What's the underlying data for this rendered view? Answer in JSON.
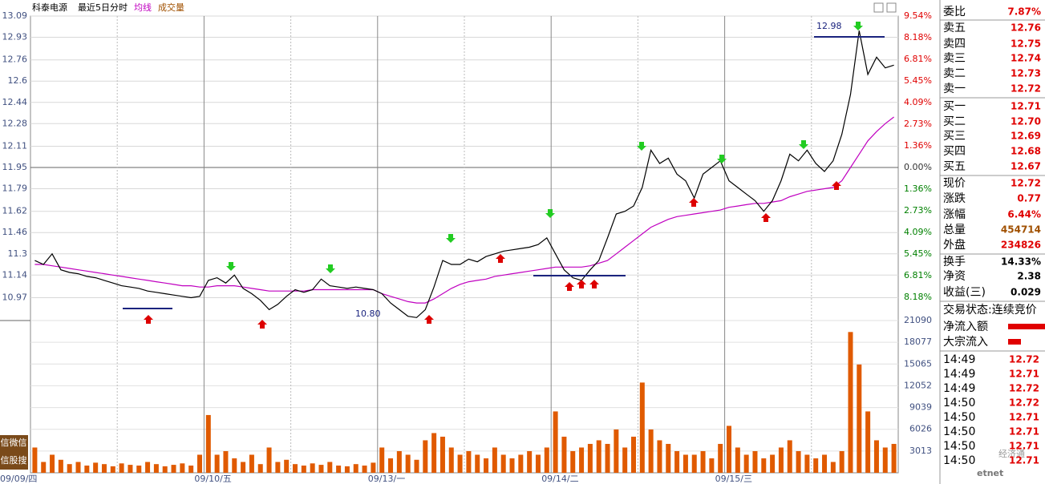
{
  "chart_data": {
    "type": "line",
    "title": "科泰电源",
    "subtitle": "最近5日分时",
    "categories": [
      "09/09/四",
      null,
      null,
      null,
      null,
      null,
      null,
      null,
      null,
      null,
      null,
      null,
      null,
      null,
      null,
      null,
      null,
      null,
      null,
      null,
      "09/10/五",
      null,
      null,
      null,
      null,
      null,
      null,
      null,
      null,
      null,
      null,
      null,
      null,
      null,
      null,
      null,
      null,
      null,
      null,
      null,
      "09/13/一",
      null,
      null,
      null,
      null,
      null,
      null,
      null,
      null,
      null,
      null,
      null,
      null,
      null,
      null,
      null,
      null,
      null,
      null,
      null,
      "09/14/二",
      null,
      null,
      null,
      null,
      null,
      null,
      null,
      null,
      null,
      null,
      null,
      null,
      null,
      null,
      null,
      null,
      null,
      null,
      null,
      "09/15/三",
      null,
      null,
      null,
      null,
      null,
      null,
      null,
      null,
      null,
      null,
      null,
      null,
      null,
      null,
      null,
      null,
      null,
      null,
      null
    ],
    "series": [
      {
        "color": "#000000",
        "values": [
          11.25,
          11.22,
          11.3,
          11.18,
          11.16,
          11.15,
          11.13,
          11.12,
          11.1,
          11.08,
          11.06,
          11.05,
          11.04,
          11.02,
          11.01,
          11.0,
          10.99,
          10.98,
          10.97,
          10.98,
          11.1,
          11.12,
          11.08,
          11.14,
          11.04,
          11.0,
          10.95,
          10.88,
          10.92,
          10.98,
          11.03,
          11.01,
          11.03,
          11.11,
          11.06,
          11.05,
          11.04,
          11.05,
          11.04,
          11.03,
          11.0,
          10.93,
          10.88,
          10.83,
          10.82,
          10.88,
          11.05,
          11.25,
          11.22,
          11.22,
          11.26,
          11.24,
          11.28,
          11.3,
          11.32,
          11.33,
          11.34,
          11.35,
          11.37,
          11.42,
          11.3,
          11.18,
          11.12,
          11.1,
          11.18,
          11.25,
          11.42,
          11.6,
          11.62,
          11.66,
          11.8,
          12.08,
          11.98,
          12.02,
          11.9,
          11.85,
          11.72,
          11.9,
          11.95,
          12.0,
          11.85,
          11.8,
          11.75,
          11.7,
          11.62,
          11.7,
          11.85,
          12.05,
          12.0,
          12.08,
          11.98,
          11.92,
          12.0,
          12.2,
          12.5,
          12.98,
          12.65,
          12.78,
          12.7,
          12.72
        ]
      },
      {
        "name": "均线",
        "color": "#c000c0",
        "values": [
          11.22,
          11.22,
          11.21,
          11.2,
          11.19,
          11.18,
          11.17,
          11.16,
          11.15,
          11.14,
          11.13,
          11.12,
          11.11,
          11.1,
          11.09,
          11.08,
          11.07,
          11.06,
          11.06,
          11.05,
          11.05,
          11.06,
          11.06,
          11.06,
          11.05,
          11.04,
          11.03,
          11.02,
          11.02,
          11.02,
          11.02,
          11.02,
          11.03,
          11.03,
          11.03,
          11.03,
          11.03,
          11.03,
          11.03,
          11.03,
          11.0,
          10.98,
          10.96,
          10.94,
          10.93,
          10.93,
          10.96,
          11.0,
          11.04,
          11.07,
          11.09,
          11.1,
          11.11,
          11.13,
          11.14,
          11.15,
          11.16,
          11.17,
          11.18,
          11.19,
          11.2,
          11.2,
          11.2,
          11.2,
          11.21,
          11.23,
          11.25,
          11.3,
          11.35,
          11.4,
          11.45,
          11.5,
          11.53,
          11.56,
          11.58,
          11.59,
          11.6,
          11.61,
          11.62,
          11.63,
          11.65,
          11.66,
          11.67,
          11.68,
          11.68,
          11.69,
          11.7,
          11.73,
          11.75,
          11.77,
          11.78,
          11.79,
          11.8,
          11.85,
          11.95,
          12.05,
          12.15,
          12.22,
          12.28,
          12.33
        ]
      }
    ],
    "ylim": [
      10.81,
      13.09
    ],
    "yticks": [
      13.09,
      12.93,
      12.76,
      12.6,
      12.44,
      12.28,
      12.11,
      11.95,
      11.79,
      11.62,
      11.46,
      11.3,
      11.14,
      10.97
    ],
    "y2lim": [
      -9.54,
      9.54
    ],
    "y2ticks": [
      {
        "value": 9.54,
        "label": "9.54%"
      },
      {
        "value": 8.18,
        "label": "8.18%"
      },
      {
        "value": 6.81,
        "label": "6.81%"
      },
      {
        "value": 5.45,
        "label": "5.45%"
      },
      {
        "value": 4.09,
        "label": "4.09%"
      },
      {
        "value": 2.73,
        "label": "2.73%"
      },
      {
        "value": 1.36,
        "label": "1.36%"
      },
      {
        "value": 0,
        "label": "0.00%"
      },
      {
        "value": -1.36,
        "label": "1.36%"
      },
      {
        "value": -2.73,
        "label": "2.73%"
      },
      {
        "value": -4.09,
        "label": "4.09%"
      },
      {
        "value": -5.45,
        "label": "5.45%"
      },
      {
        "value": -6.81,
        "label": "6.81%"
      },
      {
        "value": -8.18,
        "label": "8.18%"
      }
    ],
    "annotations": [
      "12.98",
      "10.80"
    ],
    "grid": true,
    "volume": {
      "name": "成交量",
      "color": "#e05a00",
      "ylim": [
        0,
        21090
      ],
      "yticks": [
        21090,
        18077,
        15065,
        12052,
        9039,
        6026,
        3013
      ],
      "values": [
        3500,
        1500,
        2500,
        1800,
        1200,
        1500,
        1000,
        1400,
        1200,
        900,
        1300,
        1100,
        1000,
        1500,
        1200,
        900,
        1100,
        1300,
        1000,
        2500,
        8000,
        2500,
        3000,
        2000,
        1500,
        2500,
        1200,
        3500,
        1500,
        1800,
        1200,
        1000,
        1300,
        1100,
        1500,
        1000,
        900,
        1200,
        1000,
        1400,
        3500,
        2000,
        3000,
        2500,
        1800,
        4500,
        5500,
        5000,
        3500,
        2500,
        3000,
        2500,
        2000,
        3500,
        2500,
        2000,
        2500,
        3000,
        2500,
        3500,
        8500,
        5000,
        3000,
        3500,
        4000,
        4500,
        4000,
        6000,
        3500,
        5000,
        12500,
        6000,
        4500,
        4000,
        3000,
        2500,
        2500,
        3000,
        2000,
        4000,
        6500,
        3500,
        2500,
        3000,
        2000,
        2500,
        3500,
        4500,
        3000,
        2500,
        2000,
        2500,
        1500,
        3000,
        19500,
        15000,
        8500,
        4500,
        3500,
        4000
      ]
    }
  },
  "quote_panel": {
    "rows": [
      [
        "委比",
        "7.87%"
      ],
      [
        "卖五",
        "12.76"
      ],
      [
        "卖四",
        "12.75"
      ],
      [
        "卖三",
        "12.74"
      ],
      [
        "卖二",
        "12.73"
      ],
      [
        "卖一",
        "12.72"
      ],
      [
        "买一",
        "12.71"
      ],
      [
        "买二",
        "12.70"
      ],
      [
        "买三",
        "12.69"
      ],
      [
        "买四",
        "12.68"
      ],
      [
        "买五",
        "12.67"
      ],
      [
        "现价",
        "12.72"
      ],
      [
        "涨跌",
        "0.77"
      ],
      [
        "涨幅",
        "6.44%"
      ],
      [
        "总量",
        "454714"
      ],
      [
        "外盘",
        "234826"
      ],
      [
        "换手",
        "14.33%"
      ],
      [
        "净资",
        "2.38"
      ],
      [
        "收益(三)",
        "0.029"
      ]
    ],
    "status": "交易状态:连续竞价",
    "flows": [
      "净流入额",
      "大宗流入"
    ],
    "trades": [
      [
        "14:49",
        "12.72"
      ],
      [
        "14:49",
        "12.71"
      ],
      [
        "14:49",
        "12.72"
      ],
      [
        "14:50",
        "12.72"
      ],
      [
        "14:50",
        "12.71"
      ],
      [
        "14:50",
        "12.71"
      ],
      [
        "14:50",
        "12.71"
      ],
      [
        "14:50",
        "12.71"
      ]
    ]
  },
  "side_buttons": [
    "信微信",
    "信股搜"
  ],
  "watermark": [
    "经济通",
    "etnet"
  ]
}
